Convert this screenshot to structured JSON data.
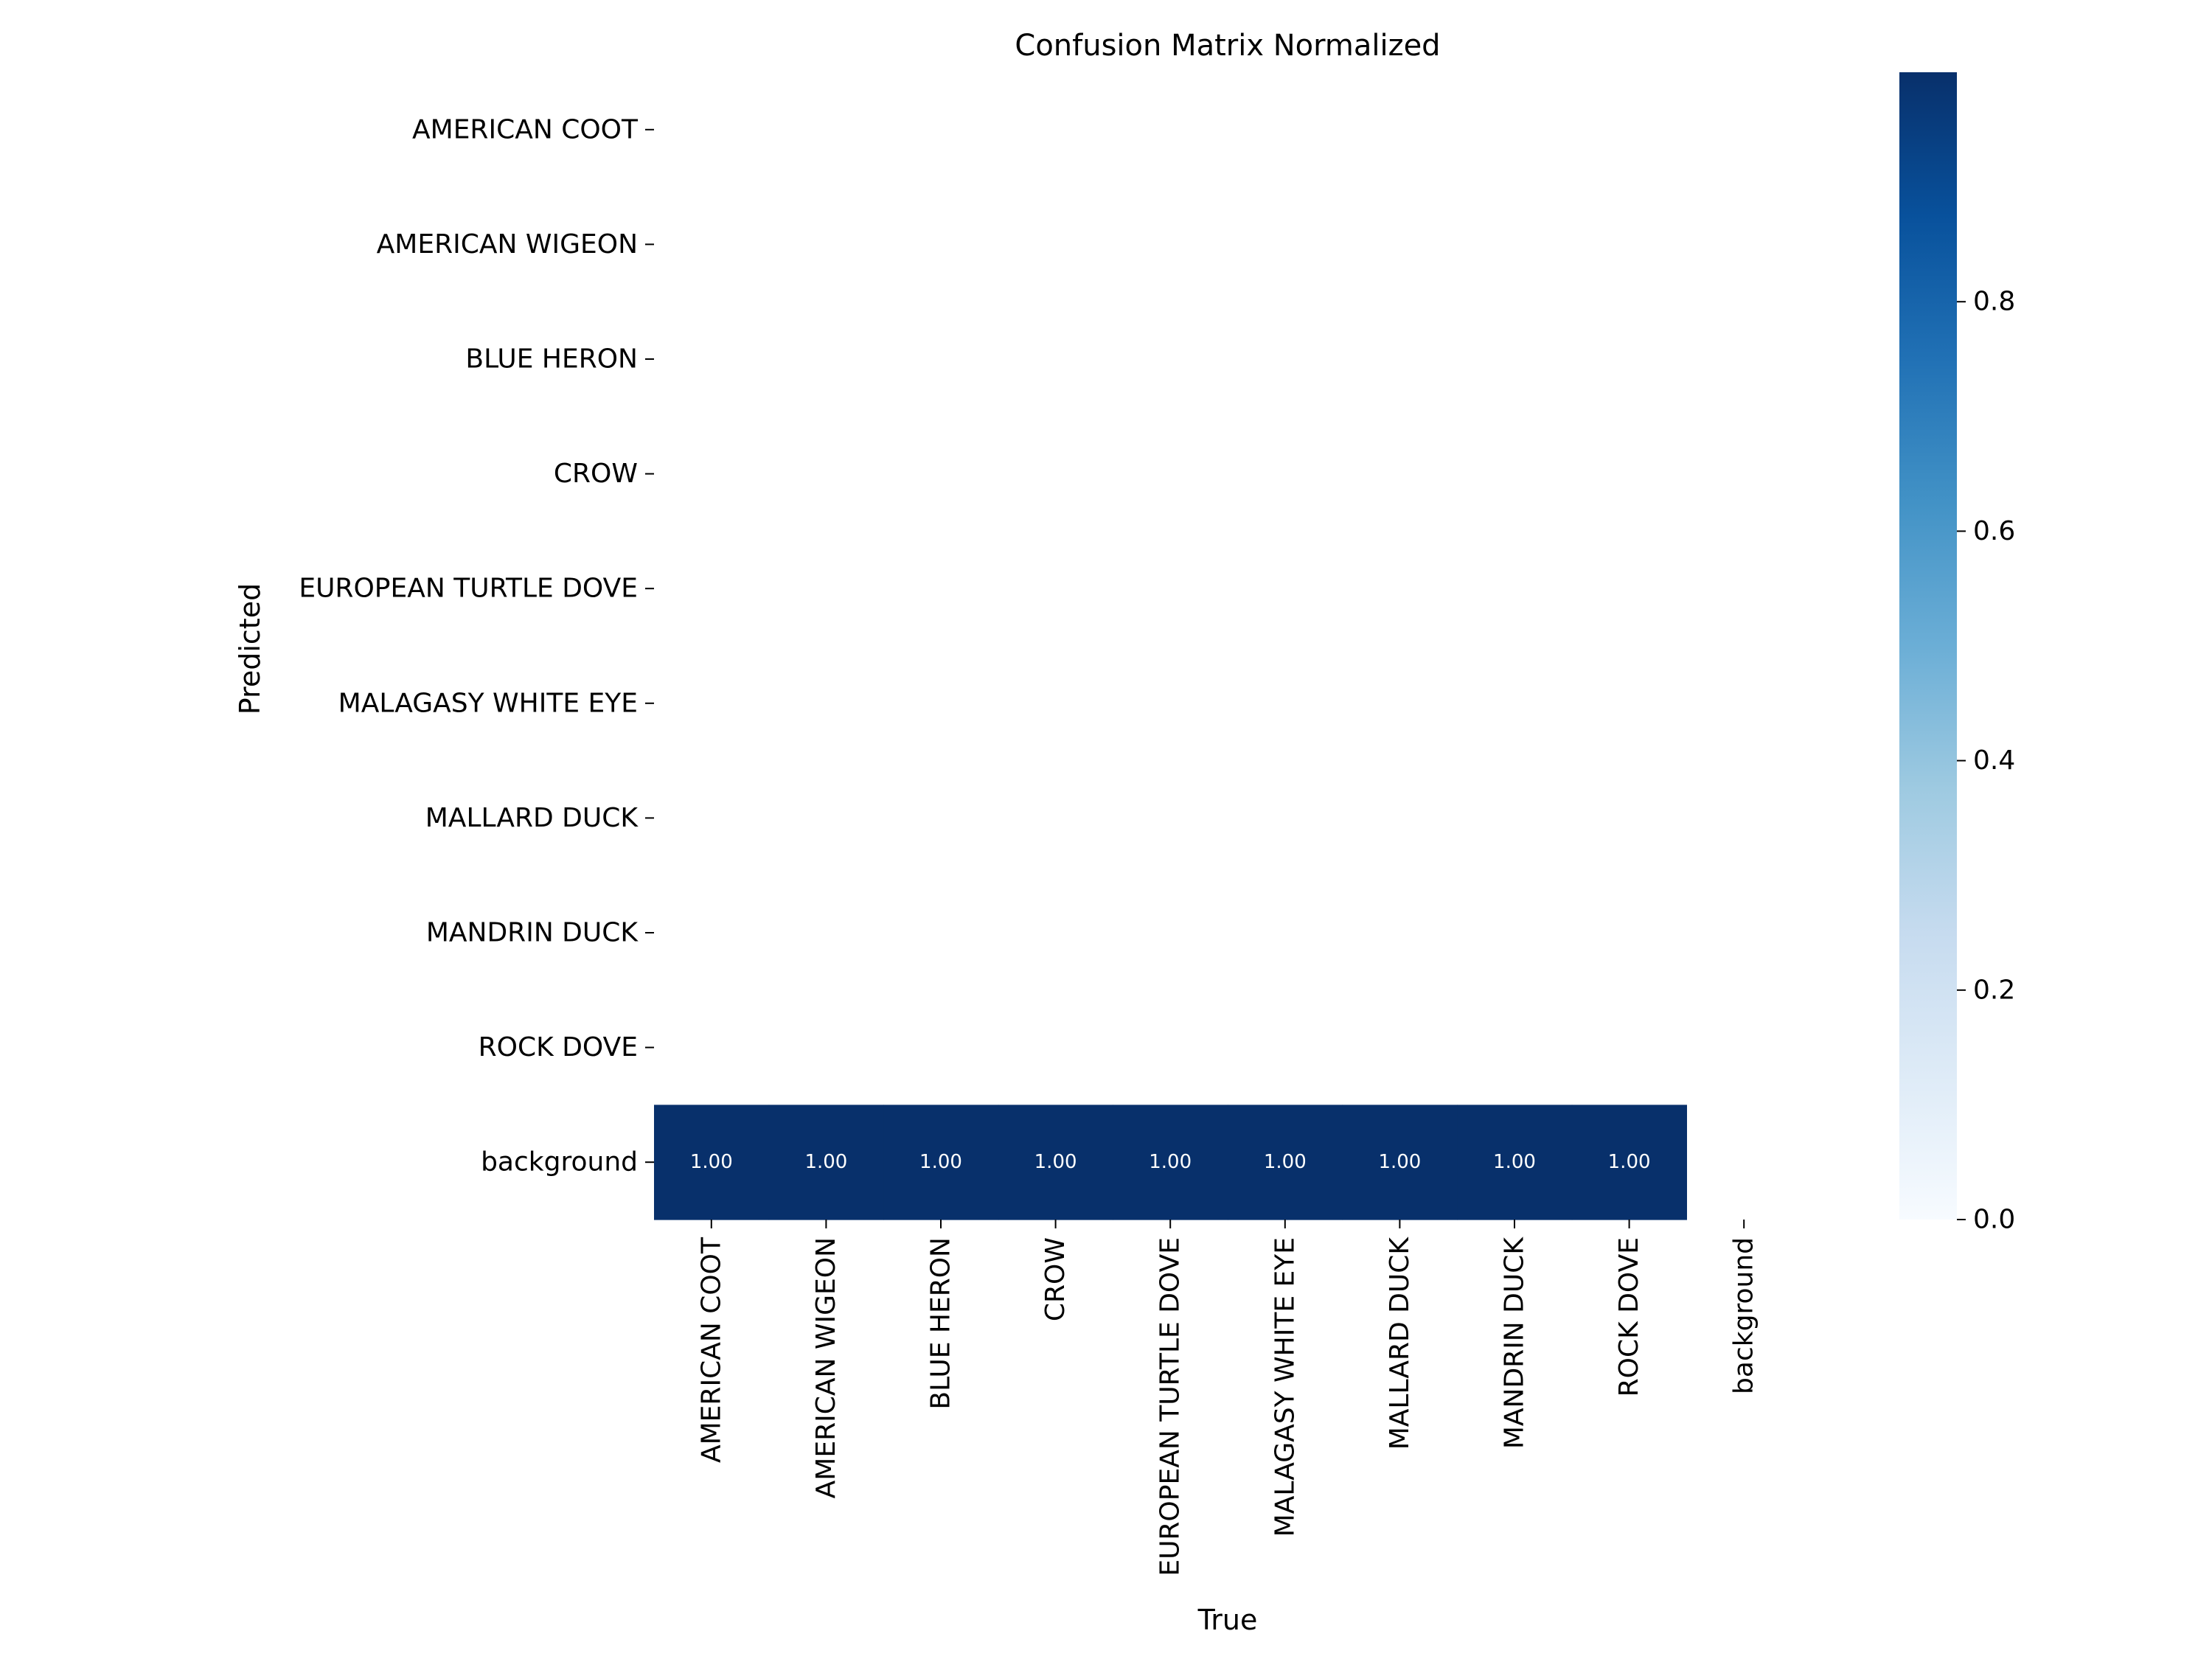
{
  "chart_data": {
    "type": "heatmap",
    "title": "Confusion Matrix Normalized",
    "xlabel": "True",
    "ylabel": "Predicted",
    "x_categories": [
      "AMERICAN COOT",
      "AMERICAN WIGEON",
      "BLUE HERON",
      "CROW",
      "EUROPEAN TURTLE DOVE",
      "MALAGASY WHITE EYE",
      "MALLARD DUCK",
      "MANDRIN DUCK",
      "ROCK DOVE",
      "background"
    ],
    "y_categories": [
      "AMERICAN COOT",
      "AMERICAN WIGEON",
      "BLUE HERON",
      "CROW",
      "EUROPEAN TURTLE DOVE",
      "MALAGASY WHITE EYE",
      "MALLARD DUCK",
      "MANDRIN DUCK",
      "ROCK DOVE",
      "background"
    ],
    "values": [
      [
        null,
        null,
        null,
        null,
        null,
        null,
        null,
        null,
        null,
        null
      ],
      [
        null,
        null,
        null,
        null,
        null,
        null,
        null,
        null,
        null,
        null
      ],
      [
        null,
        null,
        null,
        null,
        null,
        null,
        null,
        null,
        null,
        null
      ],
      [
        null,
        null,
        null,
        null,
        null,
        null,
        null,
        null,
        null,
        null
      ],
      [
        null,
        null,
        null,
        null,
        null,
        null,
        null,
        null,
        null,
        null
      ],
      [
        null,
        null,
        null,
        null,
        null,
        null,
        null,
        null,
        null,
        null
      ],
      [
        null,
        null,
        null,
        null,
        null,
        null,
        null,
        null,
        null,
        null
      ],
      [
        null,
        null,
        null,
        null,
        null,
        null,
        null,
        null,
        null,
        null
      ],
      [
        null,
        null,
        null,
        null,
        null,
        null,
        null,
        null,
        null,
        null
      ],
      [
        1.0,
        1.0,
        1.0,
        1.0,
        1.0,
        1.0,
        1.0,
        1.0,
        1.0,
        null
      ]
    ],
    "cell_labels": [
      [
        "",
        "",
        "",
        "",
        "",
        "",
        "",
        "",
        "",
        ""
      ],
      [
        "",
        "",
        "",
        "",
        "",
        "",
        "",
        "",
        "",
        ""
      ],
      [
        "",
        "",
        "",
        "",
        "",
        "",
        "",
        "",
        "",
        ""
      ],
      [
        "",
        "",
        "",
        "",
        "",
        "",
        "",
        "",
        "",
        ""
      ],
      [
        "",
        "",
        "",
        "",
        "",
        "",
        "",
        "",
        "",
        ""
      ],
      [
        "",
        "",
        "",
        "",
        "",
        "",
        "",
        "",
        "",
        ""
      ],
      [
        "",
        "",
        "",
        "",
        "",
        "",
        "",
        "",
        "",
        ""
      ],
      [
        "",
        "",
        "",
        "",
        "",
        "",
        "",
        "",
        "",
        ""
      ],
      [
        "",
        "",
        "",
        "",
        "",
        "",
        "",
        "",
        "",
        ""
      ],
      [
        "1.00",
        "1.00",
        "1.00",
        "1.00",
        "1.00",
        "1.00",
        "1.00",
        "1.00",
        "1.00",
        ""
      ]
    ],
    "colorbar": {
      "colormap": "Blues",
      "range": [
        0,
        1.0
      ],
      "ticks": [
        0.0,
        0.2,
        0.4,
        0.6,
        0.8
      ],
      "tick_labels": [
        "0.0",
        "0.2",
        "0.4",
        "0.6",
        "0.8"
      ]
    },
    "colors": {
      "max_cell": "#08306b",
      "cell_text": "#ffffff"
    }
  }
}
